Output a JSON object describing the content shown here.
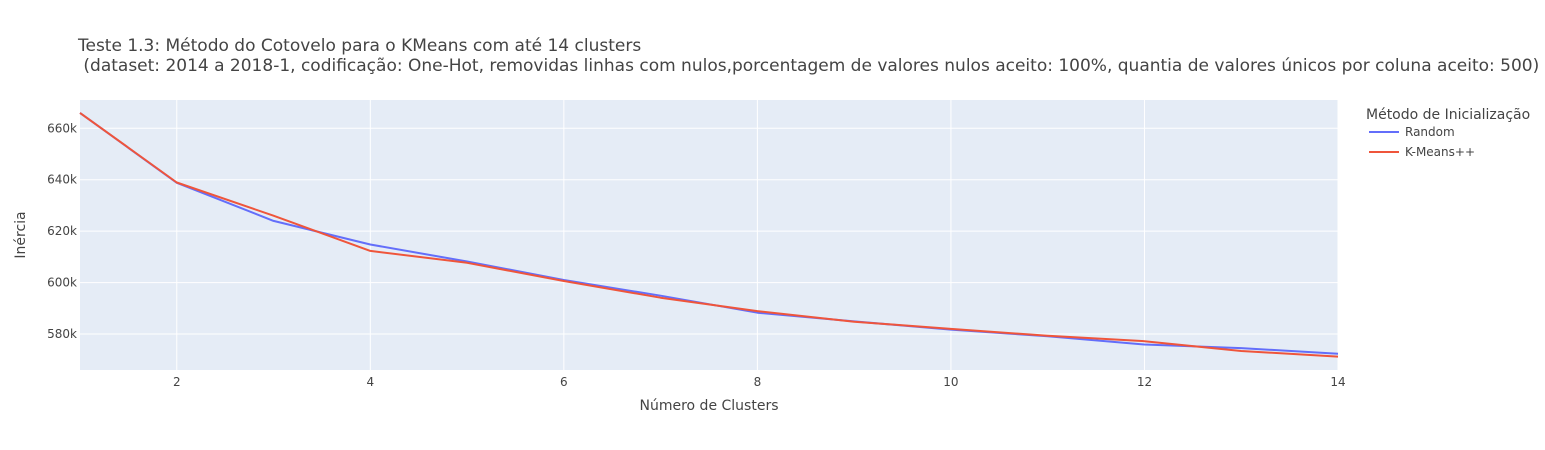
{
  "chart_data": {
    "type": "line",
    "title_lines": [
      "Teste 1.3: Método do Cotovelo para o KMeans com até 14 clusters",
      " (dataset: 2014 a 2018-1, codificação: One-Hot, removidas linhas com nulos,porcentagem de valores nulos aceito: 100%, quantia de valores únicos por coluna aceito: 500)"
    ],
    "xlabel": "Número de Clusters",
    "ylabel": "Inércia",
    "xlim": [
      1,
      14
    ],
    "ylim": [
      566000,
      671000
    ],
    "x_ticks": [
      2,
      4,
      6,
      8,
      10,
      12,
      14
    ],
    "y_ticks": [
      580000,
      600000,
      620000,
      640000,
      660000
    ],
    "y_tick_labels": [
      "580k",
      "600k",
      "620k",
      "640k",
      "660k"
    ],
    "grid": true,
    "legend_title": "Método de Inicialização",
    "legend_position": "right",
    "x": [
      1,
      2,
      3,
      4,
      5,
      6,
      7,
      8,
      9,
      10,
      11,
      12,
      13,
      14
    ],
    "series": [
      {
        "name": "Random",
        "color": "#636efa",
        "values": [
          666000,
          638800,
          624000,
          614800,
          608200,
          601000,
          594900,
          588300,
          584900,
          581700,
          579100,
          575900,
          574500,
          572300
        ]
      },
      {
        "name": "K-Means++",
        "color": "#ef553b",
        "values": [
          666000,
          638900,
          626000,
          612300,
          607700,
          600600,
          594100,
          588900,
          584800,
          582000,
          579300,
          577200,
          573400,
          571200
        ]
      }
    ]
  },
  "colors": {
    "plot_bg": "#e5ecf6",
    "grid": "#ffffff",
    "text": "#444444"
  }
}
